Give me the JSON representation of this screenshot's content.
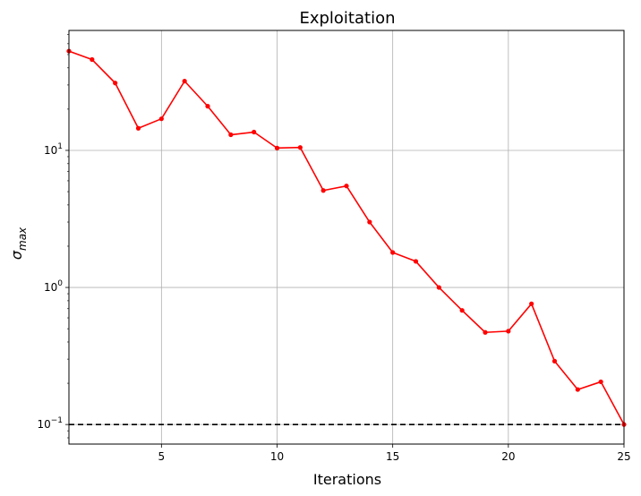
{
  "chart_data": {
    "type": "line",
    "title": "Exploitation",
    "xlabel": "Iterations",
    "ylabel": "σ",
    "ylabel_sub": "max",
    "yscale": "log",
    "xlim": [
      1,
      25
    ],
    "ylim": [
      0.072,
      75
    ],
    "grid": true,
    "x_ticks": [
      5,
      10,
      15,
      20,
      25
    ],
    "y_ticks": [
      {
        "value": 0.1,
        "base": "10",
        "exp": "−1"
      },
      {
        "value": 1,
        "base": "10",
        "exp": "0"
      },
      {
        "value": 10,
        "base": "10",
        "exp": "1"
      }
    ],
    "series": [
      {
        "color": "#ff0000",
        "marker": "circle",
        "x": [
          1,
          2,
          3,
          4,
          5,
          6,
          7,
          8,
          9,
          10,
          11,
          12,
          13,
          14,
          15,
          16,
          17,
          18,
          19,
          20,
          21,
          22,
          23,
          24,
          25
        ],
        "y": [
          53,
          46,
          31,
          14.5,
          17,
          32,
          21,
          13,
          13.6,
          10.4,
          10.5,
          5.1,
          5.5,
          3.0,
          1.8,
          1.55,
          1.0,
          0.68,
          0.47,
          0.48,
          0.76,
          0.29,
          0.18,
          0.205,
          0.1
        ]
      }
    ],
    "threshold": {
      "y": 0.1,
      "color": "#000000",
      "style": "dashed"
    }
  }
}
